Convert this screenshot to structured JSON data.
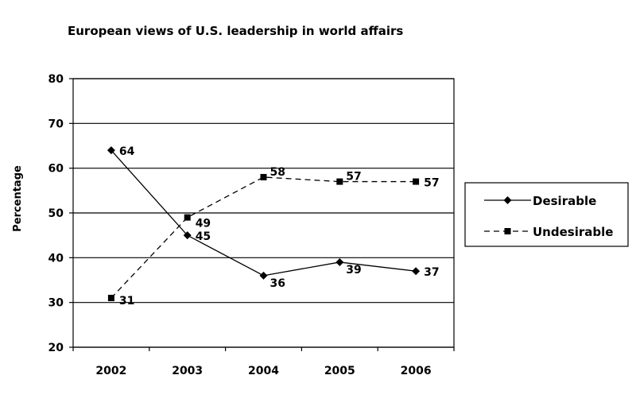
{
  "chart_data": {
    "type": "line",
    "title": "European views of U.S. leadership in world affairs",
    "xlabel": "",
    "ylabel": "Percentage",
    "categories": [
      "2002",
      "2003",
      "2004",
      "2005",
      "2006"
    ],
    "ylim": [
      20,
      80
    ],
    "yticks": [
      20,
      30,
      40,
      50,
      60,
      70,
      80
    ],
    "grid": true,
    "legend_position": "right",
    "series": [
      {
        "name": "Desirable",
        "values": [
          64,
          45,
          36,
          39,
          37
        ],
        "marker": "diamond",
        "line": "solid",
        "color": "#000000"
      },
      {
        "name": "Undesirable",
        "values": [
          31,
          49,
          58,
          57,
          57
        ],
        "marker": "square",
        "line": "dashed",
        "color": "#000000"
      }
    ]
  }
}
